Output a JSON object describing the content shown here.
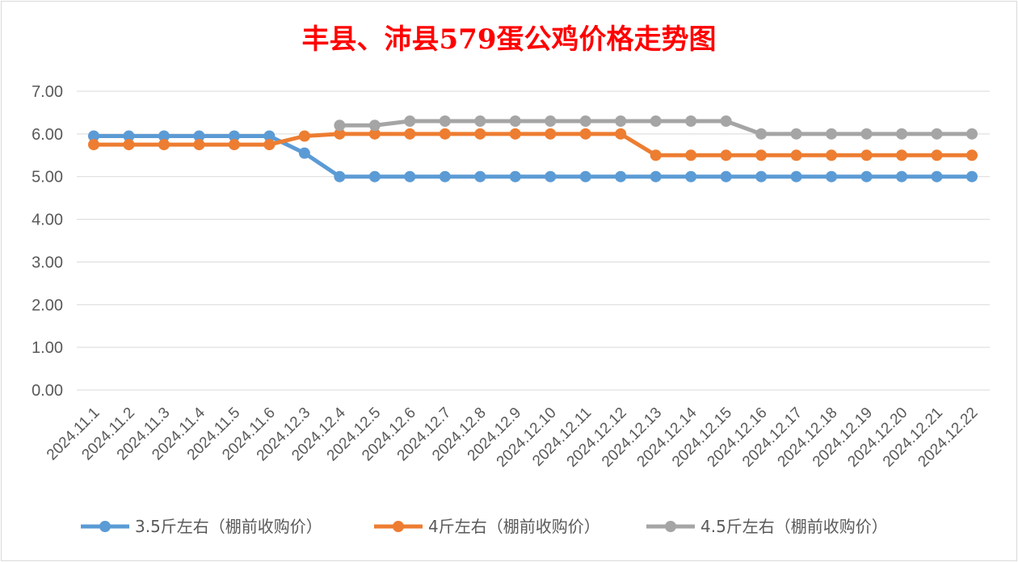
{
  "chart_data": {
    "type": "line",
    "title": "丰县、沛县579蛋公鸡价格走势图",
    "xlabel": "",
    "ylabel": "",
    "ylim": [
      0,
      7
    ],
    "yticks": [
      "0.00",
      "1.00",
      "2.00",
      "3.00",
      "4.00",
      "5.00",
      "6.00",
      "7.00"
    ],
    "grid": true,
    "legend_position": "bottom",
    "categories": [
      "2024.11.1",
      "2024.11.2",
      "2024.11.3",
      "2024.11.4",
      "2024.11.5",
      "2024.11.6",
      "2024.12.3",
      "2024.12.4",
      "2024.12.5",
      "2024.12.6",
      "2024.12.7",
      "2024.12.8",
      "2024.12.9",
      "2024.12.10",
      "2024.12.11",
      "2024.12.12",
      "2024.12.13",
      "2024.12.14",
      "2024.12.15",
      "2024.12.16",
      "2024.12.17",
      "2024.12.18",
      "2024.12.19",
      "2024.12.20",
      "2024.12.21",
      "2024.12.22"
    ],
    "series": [
      {
        "name": "3.5斤左右（棚前收购价）",
        "color": "#5b9bd5",
        "values": [
          5.95,
          5.95,
          5.95,
          5.95,
          5.95,
          5.95,
          5.55,
          5.0,
          5.0,
          5.0,
          5.0,
          5.0,
          5.0,
          5.0,
          5.0,
          5.0,
          5.0,
          5.0,
          5.0,
          5.0,
          5.0,
          5.0,
          5.0,
          5.0,
          5.0,
          5.0
        ]
      },
      {
        "name": "4斤左右（棚前收购价）",
        "color": "#ed7d31",
        "values": [
          5.75,
          5.75,
          5.75,
          5.75,
          5.75,
          5.75,
          5.95,
          6.0,
          6.0,
          6.0,
          6.0,
          6.0,
          6.0,
          6.0,
          6.0,
          6.0,
          5.5,
          5.5,
          5.5,
          5.5,
          5.5,
          5.5,
          5.5,
          5.5,
          5.5,
          5.5
        ]
      },
      {
        "name": "4.5斤左右（棚前收购价）",
        "color": "#a5a5a5",
        "values": [
          null,
          null,
          null,
          null,
          null,
          null,
          null,
          6.2,
          6.2,
          6.3,
          6.3,
          6.3,
          6.3,
          6.3,
          6.3,
          6.3,
          6.3,
          6.3,
          6.3,
          6.0,
          6.0,
          6.0,
          6.0,
          6.0,
          6.0,
          6.0
        ]
      }
    ]
  }
}
